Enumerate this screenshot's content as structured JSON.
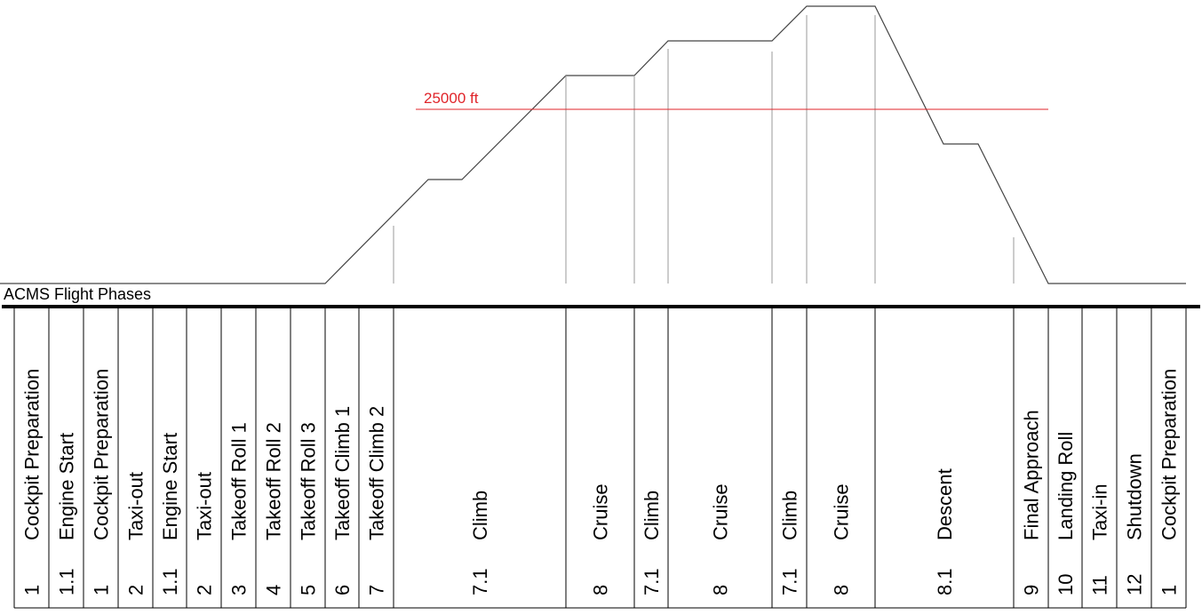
{
  "diagram": {
    "title": "ACMS Flight Phases",
    "reference_line": {
      "label": "25000 ft",
      "color": "#e0242a"
    },
    "profile_color": "#444444",
    "phases": [
      {
        "number": "1",
        "name": "Cockpit Preparation"
      },
      {
        "number": "1.1",
        "name": "Engine Start"
      },
      {
        "number": "1",
        "name": "Cockpit Preparation"
      },
      {
        "number": "2",
        "name": "Taxi-out"
      },
      {
        "number": "1.1",
        "name": "Engine Start"
      },
      {
        "number": "2",
        "name": "Taxi-out"
      },
      {
        "number": "3",
        "name": "Takeoff Roll 1"
      },
      {
        "number": "4",
        "name": "Takeoff Roll 2"
      },
      {
        "number": "5",
        "name": "Takeoff Roll 3"
      },
      {
        "number": "6",
        "name": "Takeoff Climb 1"
      },
      {
        "number": "7",
        "name": "Takeoff Climb 2"
      },
      {
        "number": "7.1",
        "name": "Climb"
      },
      {
        "number": "8",
        "name": "Cruise"
      },
      {
        "number": "7.1",
        "name": "Climb"
      },
      {
        "number": "8",
        "name": "Cruise"
      },
      {
        "number": "7.1",
        "name": "Climb"
      },
      {
        "number": "8",
        "name": "Cruise"
      },
      {
        "number": "8.1",
        "name": "Descent"
      },
      {
        "number": "9",
        "name": "Final Approach"
      },
      {
        "number": "10",
        "name": "Landing Roll"
      },
      {
        "number": "11",
        "name": "Taxi-in"
      },
      {
        "number": "12",
        "name": "Shutdown"
      },
      {
        "number": "1",
        "name": "Cockpit Preparation"
      }
    ]
  }
}
